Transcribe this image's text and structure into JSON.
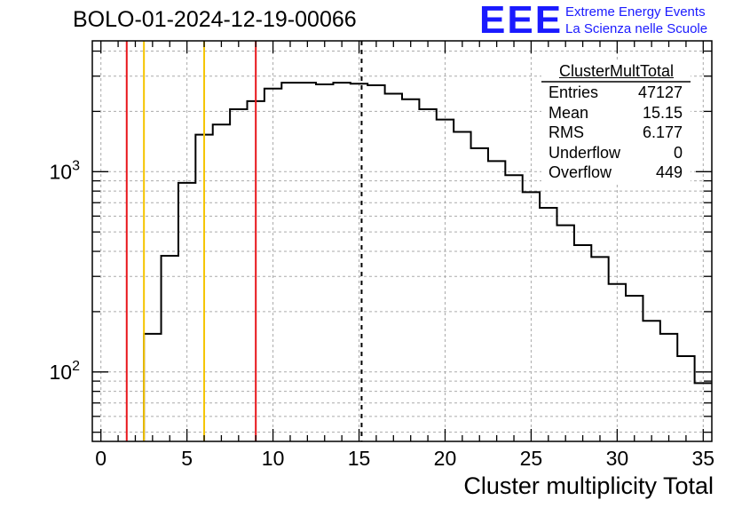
{
  "title": "BOLO-01-2024-12-19-00066",
  "logo": {
    "mark": "EEE",
    "line1": "Extreme Energy Events",
    "line2": "La Scienza nelle Scuole"
  },
  "stats": {
    "name": "ClusterMultTotal",
    "rows": [
      {
        "label": "Entries",
        "value": "47127"
      },
      {
        "label": "Mean",
        "value": "15.15"
      },
      {
        "label": "RMS",
        "value": "6.177"
      },
      {
        "label": "Underflow",
        "value": "0"
      },
      {
        "label": "Overflow",
        "value": "449"
      }
    ]
  },
  "chart_data": {
    "type": "histogram",
    "title": "BOLO-01-2024-12-19-00066",
    "xlabel": "Cluster multiplicity Total",
    "ylabel": "",
    "xlim": [
      -0.5,
      35.5
    ],
    "ylim": [
      45,
      4500
    ],
    "yscale": "log",
    "grid": true,
    "x_ticks": [
      0,
      5,
      10,
      15,
      20,
      25,
      30,
      35
    ],
    "y_tick_labels": [
      {
        "base": "10",
        "exp": "2",
        "value": 100
      },
      {
        "base": "10",
        "exp": "3",
        "value": 1000
      }
    ],
    "bin_edges": [
      2.5,
      3.5,
      4.5,
      5.5,
      6.5,
      7.5,
      8.5,
      9.5,
      10.5,
      11.5,
      12.5,
      13.5,
      14.5,
      15.5,
      16.5,
      17.5,
      18.5,
      19.5,
      20.5,
      21.5,
      22.5,
      23.5,
      24.5,
      25.5,
      26.5,
      27.5,
      28.5,
      29.5,
      30.5,
      31.5,
      32.5,
      33.5,
      34.5,
      35.5
    ],
    "counts": [
      155,
      380,
      880,
      1530,
      1720,
      2050,
      2250,
      2600,
      2780,
      2780,
      2730,
      2780,
      2750,
      2700,
      2450,
      2300,
      2050,
      1820,
      1580,
      1310,
      1130,
      960,
      790,
      660,
      540,
      430,
      375,
      275,
      240,
      180,
      155,
      120,
      88
    ],
    "vertical_lines": [
      {
        "x": 1.5,
        "color": "#e8161b",
        "style": "solid"
      },
      {
        "x": 2.5,
        "color": "#f5c400",
        "style": "solid"
      },
      {
        "x": 6,
        "color": "#f5c400",
        "style": "solid"
      },
      {
        "x": 9,
        "color": "#e8161b",
        "style": "solid"
      },
      {
        "x": 15.15,
        "color": "#000000",
        "style": "dashed"
      }
    ]
  }
}
